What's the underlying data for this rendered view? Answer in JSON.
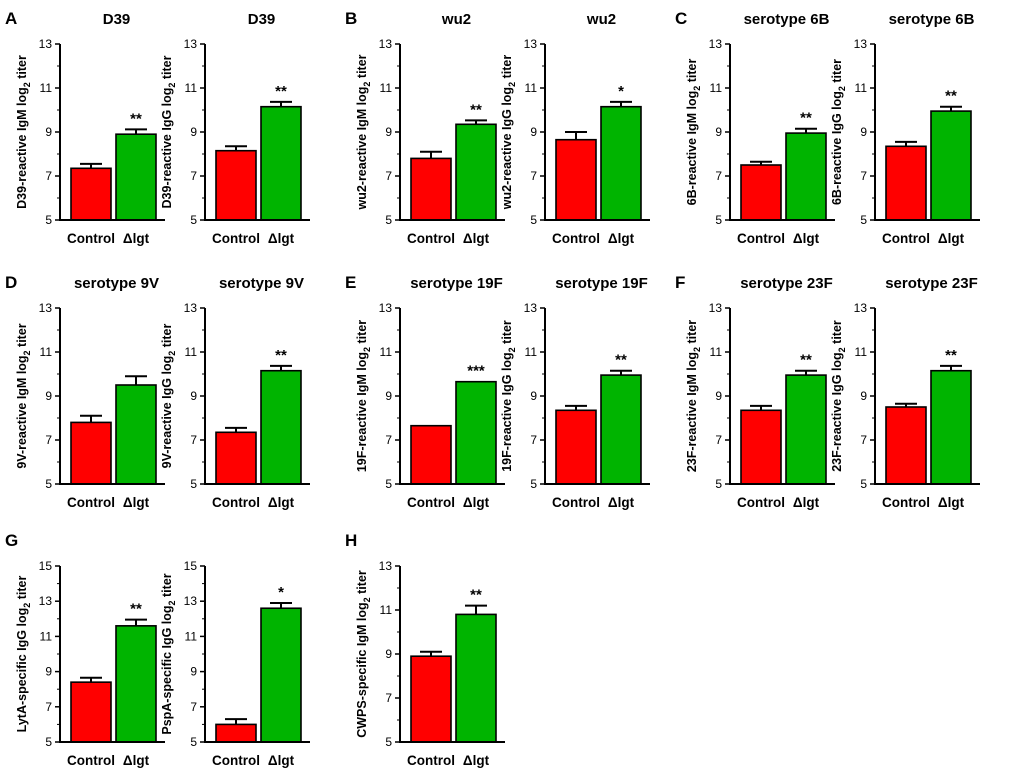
{
  "figure": {
    "panel_labels": [
      "A",
      "B",
      "C",
      "D",
      "E",
      "F",
      "G",
      "H"
    ],
    "colors": {
      "control": "#ff0000",
      "mutant": "#00b400",
      "axis": "#000000"
    }
  },
  "chart_data": [
    {
      "panel": "A",
      "type": "bar",
      "title": "D39",
      "ylabel": "D39-reactive IgM log2 titer",
      "categories": [
        "Control",
        "Δlgt"
      ],
      "values": [
        7.35,
        8.9
      ],
      "errors": [
        0.2,
        0.22
      ],
      "significance": [
        "",
        "**"
      ],
      "ylim": [
        5,
        13
      ],
      "yticks": [
        5,
        7,
        9,
        11,
        13
      ]
    },
    {
      "panel": "",
      "type": "bar",
      "title": "D39",
      "ylabel": "D39-reactive IgG log2 titer",
      "categories": [
        "Control",
        "Δlgt"
      ],
      "values": [
        8.15,
        10.15
      ],
      "errors": [
        0.2,
        0.22
      ],
      "significance": [
        "",
        "**"
      ],
      "ylim": [
        5,
        13
      ],
      "yticks": [
        5,
        7,
        9,
        11,
        13
      ]
    },
    {
      "panel": "B",
      "type": "bar",
      "title": "wu2",
      "ylabel": "wu2-reactive IgM log2 titer",
      "categories": [
        "Control",
        "Δlgt"
      ],
      "values": [
        7.8,
        9.35
      ],
      "errors": [
        0.3,
        0.18
      ],
      "significance": [
        "",
        "**"
      ],
      "ylim": [
        5,
        13
      ],
      "yticks": [
        5,
        7,
        9,
        11,
        13
      ]
    },
    {
      "panel": "",
      "type": "bar",
      "title": "wu2",
      "ylabel": "wu2-reactive IgG log2 titer",
      "categories": [
        "Control",
        "Δlgt"
      ],
      "values": [
        8.65,
        10.15
      ],
      "errors": [
        0.35,
        0.22
      ],
      "significance": [
        "",
        "*"
      ],
      "ylim": [
        5,
        13
      ],
      "yticks": [
        5,
        7,
        9,
        11,
        13
      ]
    },
    {
      "panel": "C",
      "type": "bar",
      "title": "serotype 6B",
      "ylabel": "6B-reactive IgM log2 titer",
      "categories": [
        "Control",
        "Δlgt"
      ],
      "values": [
        7.5,
        8.95
      ],
      "errors": [
        0.15,
        0.2
      ],
      "significance": [
        "",
        "**"
      ],
      "ylim": [
        5,
        13
      ],
      "yticks": [
        5,
        7,
        9,
        11,
        13
      ]
    },
    {
      "panel": "",
      "type": "bar",
      "title": "serotype 6B",
      "ylabel": "6B-reactive IgG log2 titer",
      "categories": [
        "Control",
        "Δlgt"
      ],
      "values": [
        8.35,
        9.95
      ],
      "errors": [
        0.2,
        0.2
      ],
      "significance": [
        "",
        "**"
      ],
      "ylim": [
        5,
        13
      ],
      "yticks": [
        5,
        7,
        9,
        11,
        13
      ]
    },
    {
      "panel": "D",
      "type": "bar",
      "title": "serotype 9V",
      "ylabel": "9V-reactive IgM log2 titer",
      "categories": [
        "Control",
        "Δlgt"
      ],
      "values": [
        7.8,
        9.5
      ],
      "errors": [
        0.3,
        0.4
      ],
      "significance": [
        "",
        ""
      ],
      "ylim": [
        5,
        13
      ],
      "yticks": [
        5,
        7,
        9,
        11,
        13
      ]
    },
    {
      "panel": "",
      "type": "bar",
      "title": "serotype 9V",
      "ylabel": "9V-reactive IgG log2 titer",
      "categories": [
        "Control",
        "Δlgt"
      ],
      "values": [
        7.35,
        10.15
      ],
      "errors": [
        0.2,
        0.22
      ],
      "significance": [
        "",
        "**"
      ],
      "ylim": [
        5,
        13
      ],
      "yticks": [
        5,
        7,
        9,
        11,
        13
      ]
    },
    {
      "panel": "E",
      "type": "bar",
      "title": "serotype 19F",
      "ylabel": "19F-reactive IgM log2 titer",
      "categories": [
        "Control",
        "Δlgt"
      ],
      "values": [
        7.65,
        9.65
      ],
      "errors": [
        0.0,
        0.0
      ],
      "significance": [
        "",
        "***"
      ],
      "ylim": [
        5,
        13
      ],
      "yticks": [
        5,
        7,
        9,
        11,
        13
      ]
    },
    {
      "panel": "",
      "type": "bar",
      "title": "serotype 19F",
      "ylabel": "19F-reactive IgG log2 titer",
      "categories": [
        "Control",
        "Δlgt"
      ],
      "values": [
        8.35,
        9.95
      ],
      "errors": [
        0.2,
        0.2
      ],
      "significance": [
        "",
        "**"
      ],
      "ylim": [
        5,
        13
      ],
      "yticks": [
        5,
        7,
        9,
        11,
        13
      ]
    },
    {
      "panel": "F",
      "type": "bar",
      "title": "serotype 23F",
      "ylabel": "23F-reactive IgM log2 titer",
      "categories": [
        "Control",
        "Δlgt"
      ],
      "values": [
        8.35,
        9.95
      ],
      "errors": [
        0.2,
        0.2
      ],
      "significance": [
        "",
        "**"
      ],
      "ylim": [
        5,
        13
      ],
      "yticks": [
        5,
        7,
        9,
        11,
        13
      ]
    },
    {
      "panel": "",
      "type": "bar",
      "title": "serotype 23F",
      "ylabel": "23F-reactive IgG log2 titer",
      "categories": [
        "Control",
        "Δlgt"
      ],
      "values": [
        8.5,
        10.15
      ],
      "errors": [
        0.15,
        0.22
      ],
      "significance": [
        "",
        "**"
      ],
      "ylim": [
        5,
        13
      ],
      "yticks": [
        5,
        7,
        9,
        11,
        13
      ]
    },
    {
      "panel": "G",
      "type": "bar",
      "title": "",
      "ylabel": "LytA-specific IgG log2 titer",
      "categories": [
        "Control",
        "Δlgt"
      ],
      "values": [
        8.4,
        11.6
      ],
      "errors": [
        0.25,
        0.35
      ],
      "significance": [
        "",
        "**"
      ],
      "ylim": [
        5,
        15
      ],
      "yticks": [
        5,
        7,
        9,
        11,
        13,
        15
      ]
    },
    {
      "panel": "",
      "type": "bar",
      "title": "",
      "ylabel": "PspA-specific IgG log2 titer",
      "categories": [
        "Control",
        "Δlgt"
      ],
      "values": [
        6.0,
        12.6
      ],
      "errors": [
        0.3,
        0.3
      ],
      "significance": [
        "",
        "*"
      ],
      "ylim": [
        5,
        15
      ],
      "yticks": [
        5,
        7,
        9,
        11,
        13,
        15
      ]
    },
    {
      "panel": "H",
      "type": "bar",
      "title": "",
      "ylabel": "CWPS-specific IgM log2 titer",
      "categories": [
        "Control",
        "Δlgt"
      ],
      "values": [
        8.9,
        10.8
      ],
      "errors": [
        0.2,
        0.4
      ],
      "significance": [
        "",
        "**"
      ],
      "ylim": [
        5,
        13
      ],
      "yticks": [
        5,
        7,
        9,
        11,
        13
      ]
    }
  ]
}
